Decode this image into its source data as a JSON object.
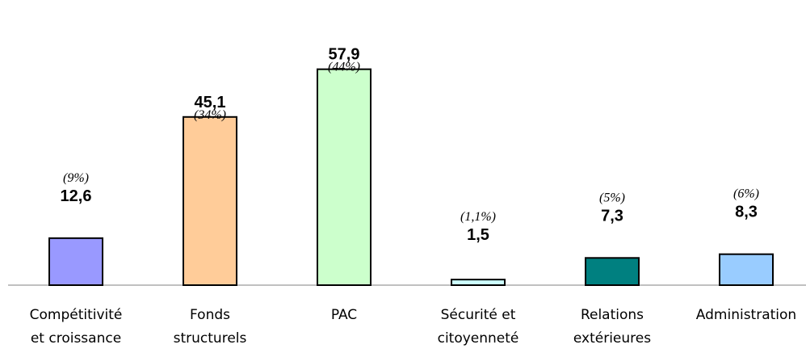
{
  "chart_data": {
    "type": "bar",
    "categories": [
      [
        "Compétitivité",
        "et croissance"
      ],
      [
        "Fonds",
        "structurels"
      ],
      [
        "PAC"
      ],
      [
        "Sécurité et",
        "citoyenneté"
      ],
      [
        "Relations",
        "extérieures"
      ],
      [
        "Administration"
      ]
    ],
    "values": [
      12.6,
      45.1,
      57.9,
      1.5,
      7.3,
      8.3
    ],
    "value_labels": [
      "12,6",
      "45,1",
      "57,9",
      "1,5",
      "7,3",
      "8,3"
    ],
    "percent_labels": [
      "(9%)",
      "(34%)",
      "(44%)",
      "(1,1%)",
      "(5%)",
      "(6%)"
    ],
    "colors": [
      "#9999ff",
      "#ffcc99",
      "#ccffcc",
      "#ccffff",
      "#008080",
      "#99ccff"
    ],
    "ylim": [
      0,
      60
    ],
    "grid": false,
    "legend": "none"
  }
}
